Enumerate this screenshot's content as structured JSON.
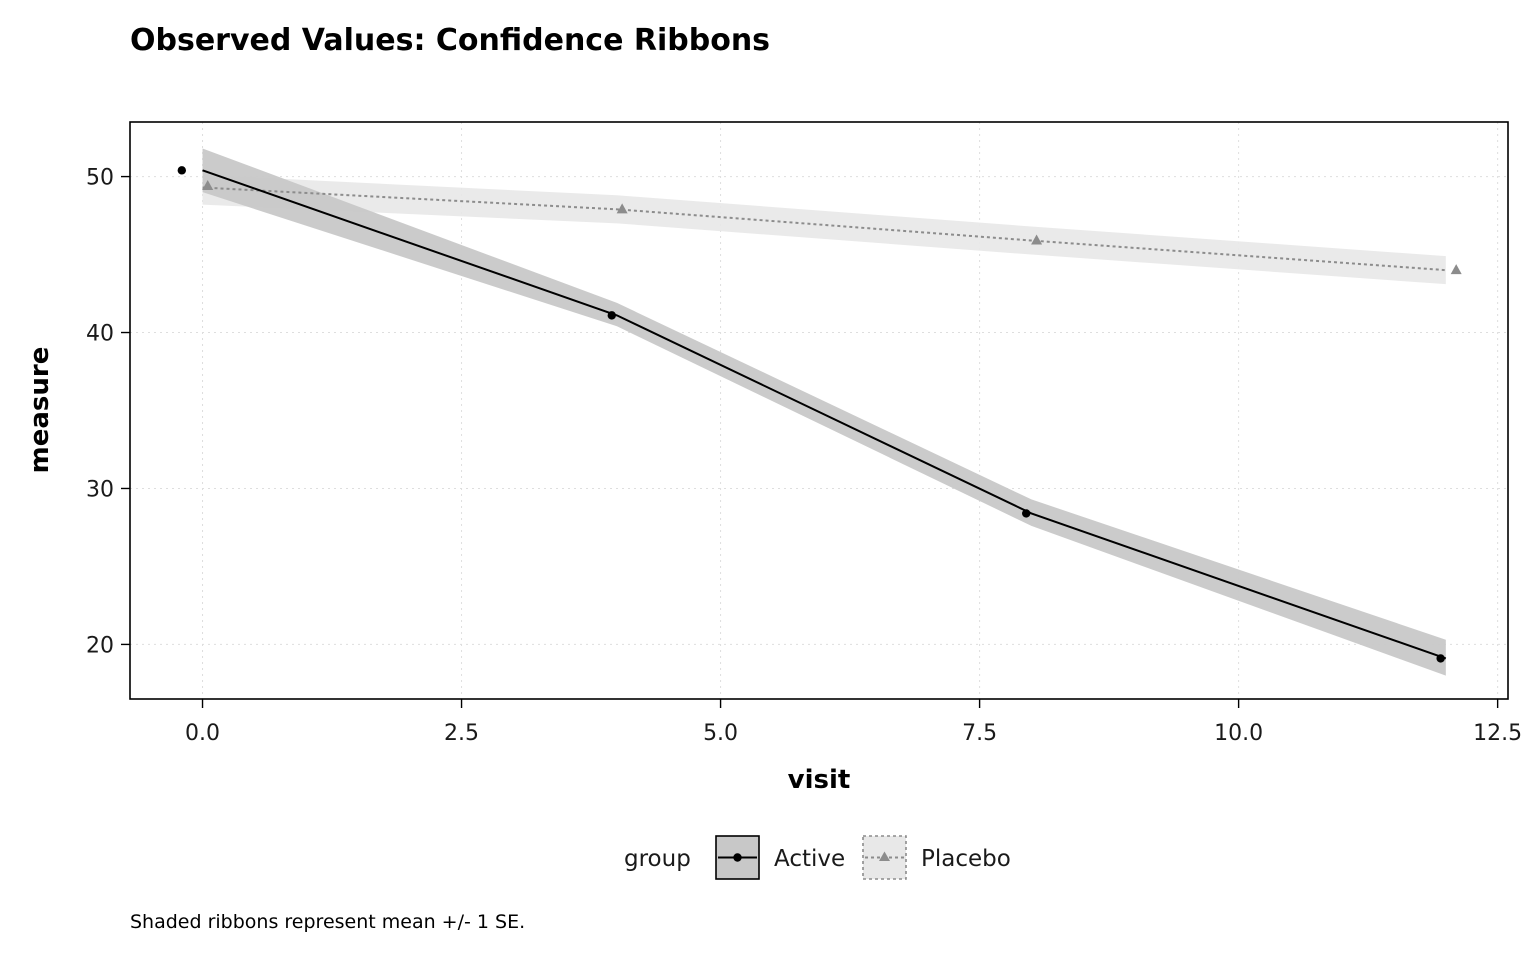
{
  "chart_data": {
    "type": "line",
    "title": "Observed Values: Confidence Ribbons",
    "xlabel": "visit",
    "ylabel": "measure",
    "caption": "Shaded ribbons represent mean +/- 1 SE.",
    "xlim": [
      -0.7,
      12.6
    ],
    "ylim": [
      16.5,
      53.5
    ],
    "x_ticks": [
      0,
      2.5,
      5,
      7.5,
      10,
      12.5
    ],
    "x_tick_labels": [
      "0.0",
      "2.5",
      "5.0",
      "7.5",
      "10.0",
      "12.5"
    ],
    "y_ticks": [
      20,
      30,
      40,
      50
    ],
    "y_tick_labels": [
      "20",
      "30",
      "40",
      "50"
    ],
    "grid": true,
    "legend": {
      "title": "group",
      "position": "bottom"
    },
    "series": [
      {
        "name": "Active",
        "color": "#000000",
        "ribbon_color": "#c8c8c8",
        "line_style": "solid",
        "marker": "circle",
        "points": [
          {
            "x": -0.2,
            "y": 50.4
          },
          {
            "x": 3.95,
            "y": 41.1
          },
          {
            "x": 7.95,
            "y": 28.4
          },
          {
            "x": 11.95,
            "y": 19.1
          }
        ],
        "ribbon": [
          {
            "x": 0,
            "lower": 49.0,
            "upper": 51.8
          },
          {
            "x": 4,
            "lower": 40.4,
            "upper": 41.9
          },
          {
            "x": 8,
            "lower": 27.6,
            "upper": 29.3
          },
          {
            "x": 12,
            "lower": 18.0,
            "upper": 20.3
          }
        ],
        "line": [
          {
            "x": 0,
            "y": 50.4
          },
          {
            "x": 4,
            "y": 41.1
          },
          {
            "x": 8,
            "y": 28.4
          },
          {
            "x": 12,
            "y": 19.1
          }
        ]
      },
      {
        "name": "Placebo",
        "color": "#8c8c8c",
        "ribbon_color": "#e8e8e8",
        "line_style": "dotted",
        "marker": "triangle",
        "points": [
          {
            "x": 0.05,
            "y": 49.4
          },
          {
            "x": 4.05,
            "y": 47.9
          },
          {
            "x": 8.05,
            "y": 45.9
          },
          {
            "x": 12.1,
            "y": 44.0
          }
        ],
        "ribbon": [
          {
            "x": 0,
            "lower": 48.2,
            "upper": 50.1
          },
          {
            "x": 4,
            "lower": 47.0,
            "upper": 48.8
          },
          {
            "x": 8,
            "lower": 45.0,
            "upper": 46.8
          },
          {
            "x": 12,
            "lower": 43.1,
            "upper": 44.9
          }
        ],
        "line": [
          {
            "x": 0,
            "y": 49.3
          },
          {
            "x": 4,
            "y": 47.9
          },
          {
            "x": 8,
            "y": 45.9
          },
          {
            "x": 12,
            "y": 44.0
          }
        ]
      }
    ]
  }
}
